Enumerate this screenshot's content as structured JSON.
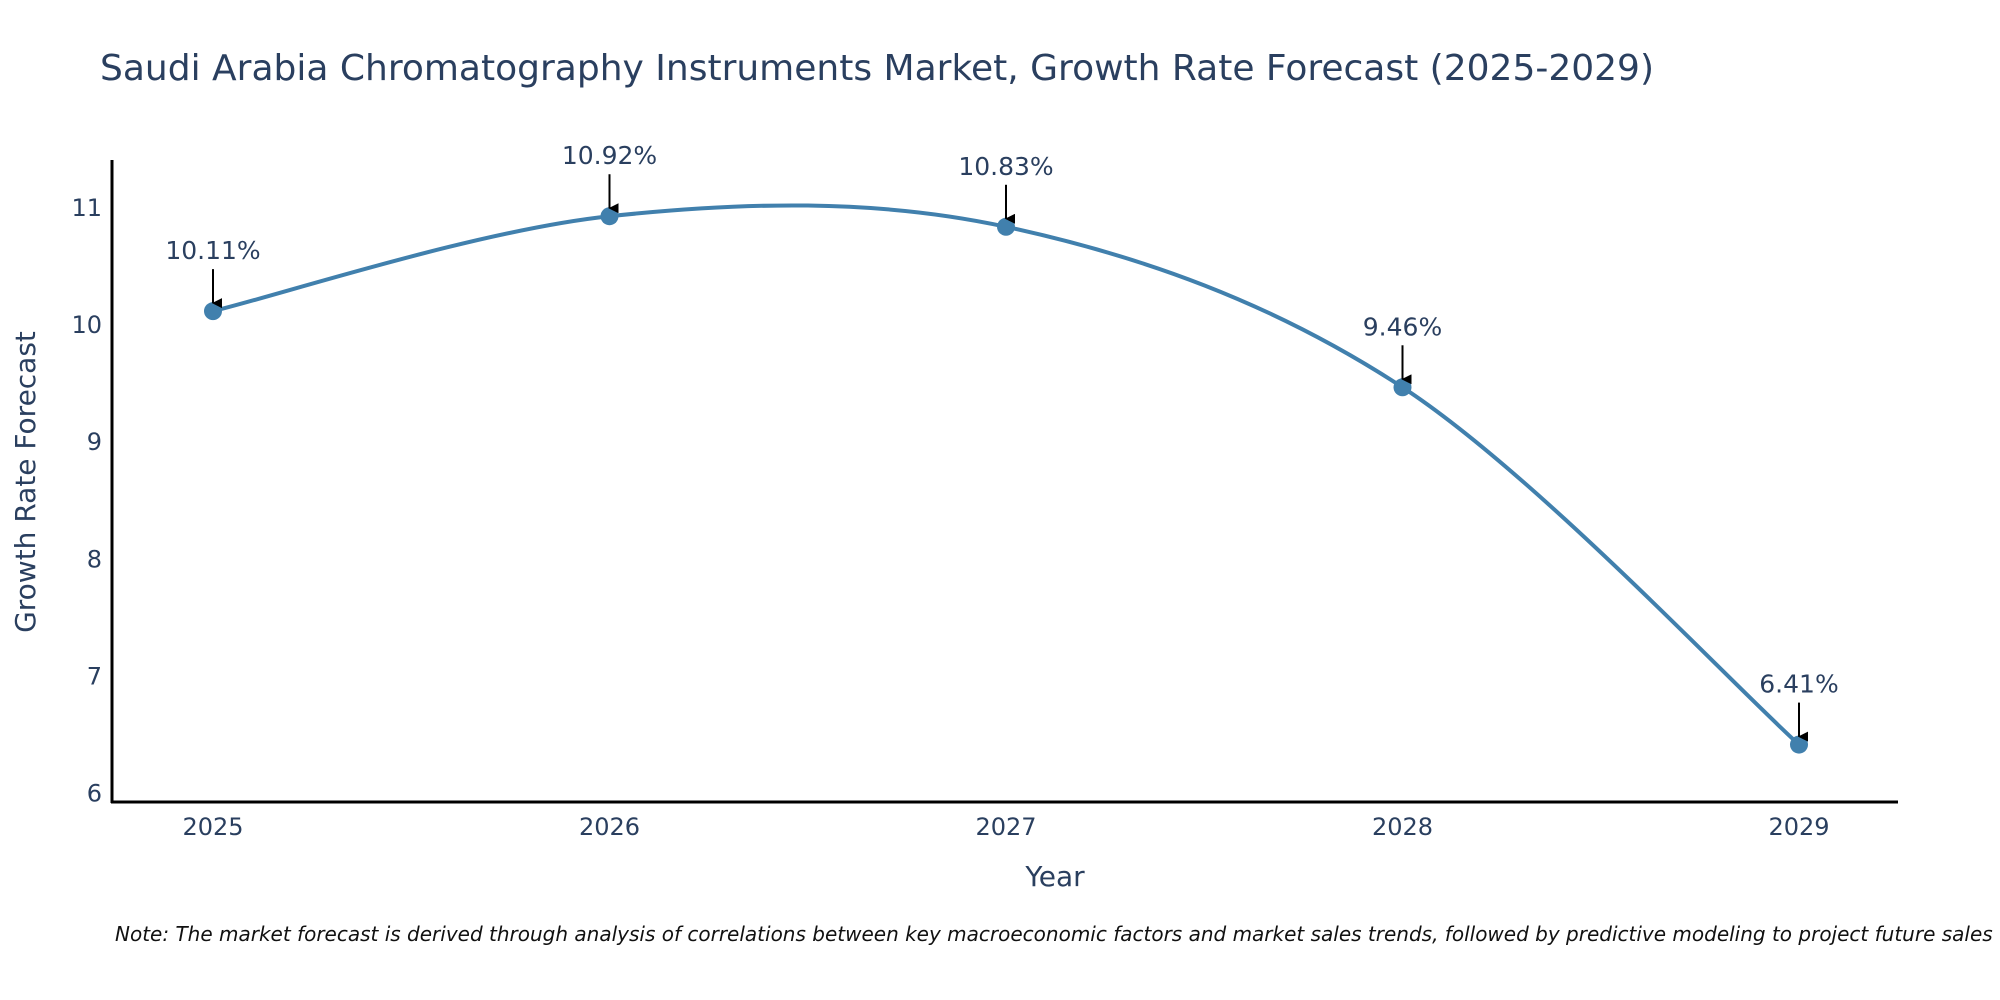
{
  "chart_data": {
    "type": "line",
    "title": "Saudi Arabia Chromatography Instruments Market, Growth Rate Forecast (2025-2029)",
    "xlabel": "Year",
    "ylabel": "Growth Rate Forecast",
    "categories": [
      "2025",
      "2026",
      "2027",
      "2028",
      "2029"
    ],
    "series": [
      {
        "values": [
          10.11,
          10.92,
          10.83,
          9.46,
          6.41
        ]
      }
    ],
    "data_labels": [
      "10.11%",
      "10.92%",
      "10.83%",
      "9.46%",
      "6.41%"
    ],
    "y_ticks": [
      6,
      7,
      8,
      9,
      10,
      11
    ],
    "ylim": [
      5.92,
      11.4
    ],
    "line_shape": "spline",
    "grid": false,
    "colors": {
      "line": "#4180ad",
      "marker": "#4180ad",
      "arrow": "#000000",
      "axis": "#000000"
    },
    "note": "Note: The market forecast is derived through analysis of correlations between key macroeconomic factors and market sales trends, followed by predictive modeling to project future sales"
  }
}
